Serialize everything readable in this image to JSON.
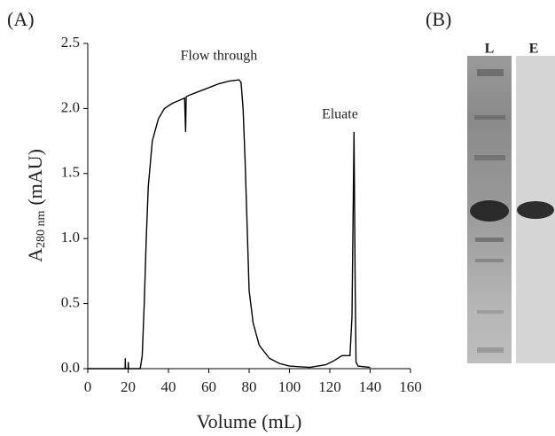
{
  "chart_data": {
    "type": "line",
    "panel_label": "(A)",
    "xlabel": "Volume (mL)",
    "ylabel": {
      "main": "A",
      "sub": "280 nm",
      "unit": "(mAU)"
    },
    "annotations": [
      {
        "text": "Flow through",
        "x": 65,
        "y": 2.4
      },
      {
        "text": "Eluate",
        "x": 125,
        "y": 1.95
      }
    ],
    "x": [
      0,
      18.5,
      18.6,
      18.7,
      20,
      20.1,
      20.2,
      26,
      27,
      28,
      29,
      30,
      32,
      35,
      38,
      42,
      45,
      48,
      48.5,
      48.8,
      50,
      55,
      60,
      65,
      70,
      75,
      76,
      77,
      78,
      79,
      80,
      82,
      85,
      90,
      95,
      100,
      110,
      118,
      122,
      126,
      130,
      131,
      132,
      132.6,
      133,
      134,
      140
    ],
    "values": [
      0,
      0,
      0.08,
      0,
      0,
      0.05,
      0,
      0,
      0.1,
      0.5,
      1.0,
      1.4,
      1.75,
      1.92,
      2.0,
      2.04,
      2.06,
      2.08,
      1.82,
      2.09,
      2.1,
      2.13,
      2.16,
      2.19,
      2.21,
      2.22,
      2.2,
      2.0,
      1.6,
      1.1,
      0.6,
      0.35,
      0.18,
      0.08,
      0.04,
      0.02,
      0.01,
      0.03,
      0.06,
      0.1,
      0.1,
      0.4,
      1.82,
      0.6,
      0.05,
      0.02,
      0.01
    ],
    "color": "#000000",
    "xlim": [
      0,
      160
    ],
    "xticks": [
      0,
      20,
      40,
      60,
      80,
      100,
      120,
      140,
      160
    ],
    "ylim": [
      0,
      2.5
    ],
    "yticks": [
      {
        "value": 0,
        "label": "0.0"
      },
      0.5,
      {
        "value": 1,
        "label": "1.0"
      },
      1.5,
      {
        "value": 2,
        "label": "2.0"
      },
      2.5
    ]
  },
  "gel": {
    "panel_label": "(B)",
    "lanes": [
      "L",
      "E"
    ]
  }
}
